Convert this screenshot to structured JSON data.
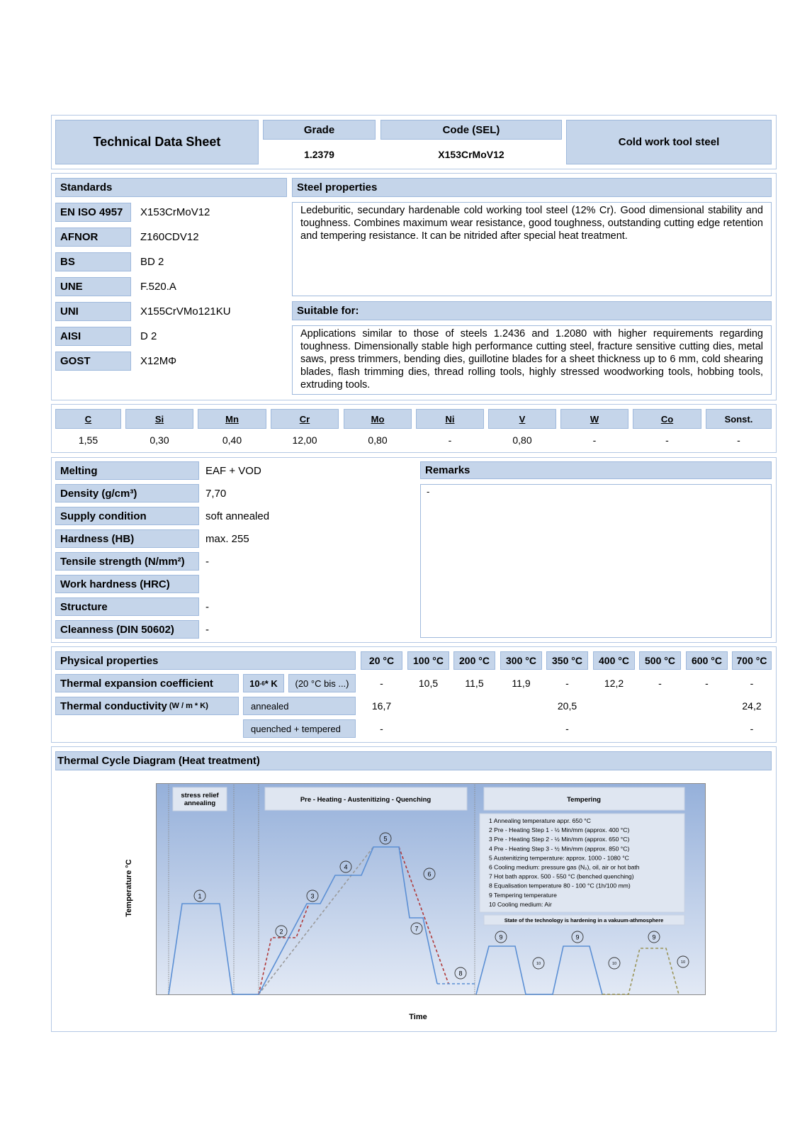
{
  "header": {
    "title": "Technical Data Sheet",
    "grade_label": "Grade",
    "grade_value": "1.2379",
    "code_label": "Code (SEL)",
    "code_value": "X153CrMoV12",
    "category": "Cold work tool steel"
  },
  "standards": {
    "title": "Standards",
    "rows": [
      {
        "label": "EN ISO 4957",
        "value": "X153CrMoV12"
      },
      {
        "label": "AFNOR",
        "value": "Z160CDV12"
      },
      {
        "label": "BS",
        "value": "BD 2"
      },
      {
        "label": "UNE",
        "value": "F.520.A"
      },
      {
        "label": "UNI",
        "value": "X155CrVMo121KU"
      },
      {
        "label": "AISI",
        "value": "D 2"
      },
      {
        "label": "GOST",
        "value": "X12MΦ"
      }
    ]
  },
  "steel_properties": {
    "title": "Steel properties",
    "text": "Ledeburitic, secundary hardenable cold working tool steel (12% Cr). Good dimensional stability and toughness. Combines maximum wear resistance, good toughness, outstanding cutting edge retention and tempering resistance. It can be nitrided after special heat treatment."
  },
  "suitable_for": {
    "title": "Suitable for:",
    "text": "Applications similar to those of steels 1.2436 and 1.2080 with higher requirements regarding toughness. Dimensionally stable high performance cutting steel, fracture sensitive cutting dies, metal saws, press trimmers, bending dies, guillotine blades for a sheet thickness up to 6 mm, cold shearing blades, flash trimming dies, thread rolling tools, highly stressed woodworking tools, hobbing tools, extruding tools."
  },
  "composition": [
    {
      "el": "C",
      "v": "1,55"
    },
    {
      "el": "Si",
      "v": "0,30"
    },
    {
      "el": "Mn",
      "v": "0,40"
    },
    {
      "el": "Cr",
      "v": "12,00"
    },
    {
      "el": "Mo",
      "v": "0,80"
    },
    {
      "el": "Ni",
      "v": "-"
    },
    {
      "el": "V",
      "v": "0,80"
    },
    {
      "el": "W",
      "v": "-"
    },
    {
      "el": "Co",
      "v": "-"
    },
    {
      "el": "Sonst.",
      "v": "-"
    }
  ],
  "properties": [
    {
      "label": "Melting",
      "value": "EAF + VOD"
    },
    {
      "label": "Density (g/cm³)",
      "value": "7,70"
    },
    {
      "label": "Supply condition",
      "value": "soft annealed"
    },
    {
      "label": "Hardness (HB)",
      "value": "max. 255"
    },
    {
      "label": "Tensile strength (N/mm²)",
      "value": "-"
    },
    {
      "label": "Work hardness (HRC)",
      "value": ""
    },
    {
      "label": "Structure",
      "value": "-"
    },
    {
      "label": "Cleanness (DIN 50602)",
      "value": "-"
    }
  ],
  "remarks": {
    "title": "Remarks",
    "text": "-"
  },
  "physical": {
    "title": "Physical properties",
    "temps": [
      "20 °C",
      "100 °C",
      "200 °C",
      "300 °C",
      "350 °C",
      "400 °C",
      "500 °C",
      "600 °C",
      "700 °C"
    ],
    "expansion": {
      "label": "Thermal expansion coefficient",
      "unit_base": "10",
      "unit_exp": "-6",
      "unit_rest": " * K",
      "range": "(20 °C bis ...)",
      "values": [
        "-",
        "10,5",
        "11,5",
        "11,9",
        "-",
        "12,2",
        "-",
        "-",
        "-"
      ]
    },
    "conductivity": {
      "label": "Thermal conductivity ",
      "unit": "(W / m * K)",
      "annealed_label": "annealed",
      "annealed": [
        "16,7",
        "",
        "",
        "",
        "20,5",
        "",
        "",
        "",
        "24,2"
      ],
      "qt_label": "quenched + tempered",
      "qt": [
        "-",
        "",
        "",
        "",
        "-",
        "",
        "",
        "",
        "-"
      ]
    }
  },
  "diagram": {
    "title": "Thermal Cycle Diagram (Heat treatment)",
    "y_label": "Temperature °C",
    "x_label": "Time",
    "phase1": [
      "stress relief",
      "annealing"
    ],
    "phase2": "Pre - Heating  - Austenitizing  - Quenching",
    "phase3": "Tempering",
    "legend": [
      "1 Annealing temperature appr. 650 °C",
      "2 Pre - Heating Step 1 - ½ Min/mm (approx. 400 °C)",
      "3 Pre - Heating Step 2 - ½ Min/mm (approx. 650 °C)",
      "4 Pre - Heating Step 3 - ½ Min/mm (approx. 850 °C)",
      "5 Austenitizing temperature: approx. 1000 - 1080  °C",
      "6 Cooling medium: pressure gas (N₂), oil, air or hot bath",
      "7 Hot bath approx. 500 - 550 °C (benched quenching)",
      "8 Equalisation temperature  80 - 100 °C (1h/100 mm)",
      "9 Tempering temperature",
      "10 Cooling medium: Air"
    ],
    "state": "State of the technology is hardening in a vakuum-athmosphere",
    "markers": [
      "1",
      "2",
      "3",
      "4",
      "5",
      "6",
      "7",
      "8",
      "9",
      "9",
      "9",
      "10",
      "10",
      "10"
    ],
    "colors": {
      "process": "#5b8fd4",
      "alternative": "#b03a3a",
      "linear": "#9a9a9a",
      "optional": "#9a9458"
    }
  }
}
